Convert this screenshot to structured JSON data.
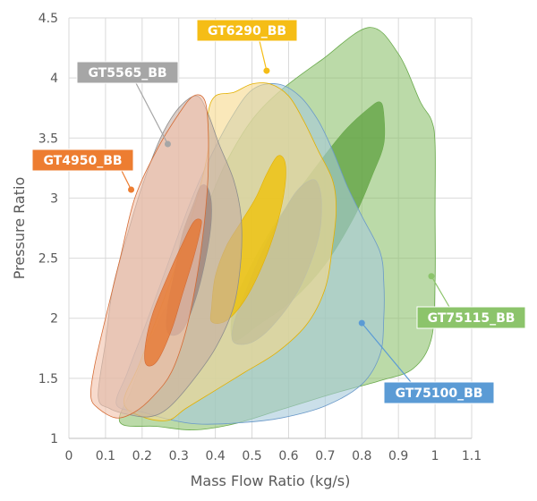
{
  "chart_data": {
    "type": "area",
    "xlabel": "Mass Flow Ratio (kg/s)",
    "ylabel": "Pressure Ratio",
    "xlim": [
      0,
      1.1
    ],
    "ylim": [
      1,
      4.5
    ],
    "xticks": [
      "0",
      "0.1",
      "0.2",
      "0.3",
      "0.4",
      "0.5",
      "0.6",
      "0.7",
      "0.8",
      "0.9",
      "1",
      "1.1"
    ],
    "yticks": [
      "1",
      "1.5",
      "2",
      "2.5",
      "3",
      "3.5",
      "4",
      "4.5"
    ],
    "grid": true,
    "series": [
      {
        "name": "GT75115_BB",
        "fill": "#8dc26e",
        "island": "#5ea03f",
        "stroke": "#6aaa4c",
        "callout": "#8cc46b",
        "label_at": [
          0.99,
          2.35
        ],
        "outline": [
          [
            0.14,
            1.13
          ],
          [
            0.24,
            1.1
          ],
          [
            0.34,
            1.07
          ],
          [
            0.45,
            1.12
          ],
          [
            0.58,
            1.24
          ],
          [
            0.73,
            1.38
          ],
          [
            0.85,
            1.48
          ],
          [
            0.94,
            1.58
          ],
          [
            0.99,
            1.83
          ],
          [
            1.0,
            2.3
          ],
          [
            1.0,
            2.9
          ],
          [
            1.0,
            3.45
          ],
          [
            0.99,
            3.65
          ],
          [
            0.96,
            3.8
          ],
          [
            0.9,
            4.2
          ],
          [
            0.82,
            4.42
          ],
          [
            0.69,
            4.15
          ],
          [
            0.58,
            3.9
          ],
          [
            0.5,
            3.65
          ],
          [
            0.43,
            3.3
          ],
          [
            0.38,
            2.95
          ],
          [
            0.33,
            2.6
          ],
          [
            0.28,
            2.2
          ],
          [
            0.22,
            1.8
          ],
          [
            0.17,
            1.4
          ],
          [
            0.14,
            1.13
          ]
        ],
        "island_outline": [
          [
            0.45,
            1.82
          ],
          [
            0.52,
            1.95
          ],
          [
            0.61,
            2.15
          ],
          [
            0.7,
            2.45
          ],
          [
            0.78,
            2.85
          ],
          [
            0.83,
            3.2
          ],
          [
            0.86,
            3.45
          ],
          [
            0.86,
            3.7
          ],
          [
            0.85,
            3.8
          ],
          [
            0.82,
            3.75
          ],
          [
            0.75,
            3.55
          ],
          [
            0.66,
            3.2
          ],
          [
            0.57,
            2.82
          ],
          [
            0.5,
            2.45
          ],
          [
            0.45,
            2.1
          ],
          [
            0.45,
            1.82
          ]
        ]
      },
      {
        "name": "GT75100_BB",
        "fill": "#a7c9da",
        "island": "#7598a8",
        "stroke": "#6a99c9",
        "callout": "#5b9bd5",
        "label_at": [
          0.8,
          1.96
        ],
        "outline": [
          [
            0.13,
            1.28
          ],
          [
            0.2,
            1.22
          ],
          [
            0.27,
            1.16
          ],
          [
            0.35,
            1.12
          ],
          [
            0.47,
            1.13
          ],
          [
            0.58,
            1.17
          ],
          [
            0.7,
            1.27
          ],
          [
            0.8,
            1.45
          ],
          [
            0.85,
            1.7
          ],
          [
            0.86,
            2.0
          ],
          [
            0.86,
            2.3
          ],
          [
            0.85,
            2.55
          ],
          [
            0.8,
            2.85
          ],
          [
            0.76,
            3.1
          ],
          [
            0.72,
            3.4
          ],
          [
            0.68,
            3.65
          ],
          [
            0.63,
            3.85
          ],
          [
            0.57,
            3.95
          ],
          [
            0.5,
            3.9
          ],
          [
            0.44,
            3.65
          ],
          [
            0.38,
            3.3
          ],
          [
            0.33,
            2.95
          ],
          [
            0.27,
            2.45
          ],
          [
            0.21,
            1.95
          ],
          [
            0.16,
            1.55
          ],
          [
            0.13,
            1.28
          ]
        ],
        "island_outline": [
          [
            0.45,
            1.8
          ],
          [
            0.5,
            1.8
          ],
          [
            0.56,
            1.95
          ],
          [
            0.63,
            2.25
          ],
          [
            0.68,
            2.65
          ],
          [
            0.69,
            2.95
          ],
          [
            0.68,
            3.12
          ],
          [
            0.66,
            3.15
          ],
          [
            0.62,
            3.05
          ],
          [
            0.57,
            2.8
          ],
          [
            0.52,
            2.5
          ],
          [
            0.48,
            2.2
          ],
          [
            0.45,
            1.95
          ],
          [
            0.45,
            1.8
          ]
        ]
      },
      {
        "name": "GT6290_BB",
        "fill": "#f6d98c",
        "island": "#f0c000",
        "stroke": "#e3b000",
        "callout": "#f5bd16",
        "label_at": [
          0.54,
          4.06
        ],
        "outline": [
          [
            0.15,
            1.3
          ],
          [
            0.2,
            1.18
          ],
          [
            0.27,
            1.15
          ],
          [
            0.32,
            1.25
          ],
          [
            0.4,
            1.4
          ],
          [
            0.48,
            1.55
          ],
          [
            0.57,
            1.72
          ],
          [
            0.65,
            1.95
          ],
          [
            0.7,
            2.25
          ],
          [
            0.72,
            2.6
          ],
          [
            0.73,
            2.9
          ],
          [
            0.72,
            3.15
          ],
          [
            0.68,
            3.4
          ],
          [
            0.64,
            3.65
          ],
          [
            0.6,
            3.85
          ],
          [
            0.55,
            3.95
          ],
          [
            0.5,
            3.95
          ],
          [
            0.45,
            3.88
          ],
          [
            0.4,
            3.85
          ],
          [
            0.38,
            3.7
          ],
          [
            0.38,
            3.4
          ],
          [
            0.35,
            3.0
          ],
          [
            0.3,
            2.5
          ],
          [
            0.24,
            2.0
          ],
          [
            0.19,
            1.6
          ],
          [
            0.15,
            1.3
          ]
        ],
        "island_outline": [
          [
            0.39,
            1.97
          ],
          [
            0.43,
            1.98
          ],
          [
            0.48,
            2.15
          ],
          [
            0.53,
            2.45
          ],
          [
            0.57,
            2.8
          ],
          [
            0.59,
            3.1
          ],
          [
            0.59,
            3.3
          ],
          [
            0.57,
            3.35
          ],
          [
            0.54,
            3.2
          ],
          [
            0.51,
            3.0
          ],
          [
            0.47,
            2.8
          ],
          [
            0.43,
            2.6
          ],
          [
            0.4,
            2.35
          ],
          [
            0.39,
            2.1
          ],
          [
            0.39,
            1.97
          ]
        ]
      },
      {
        "name": "GT5565_BB",
        "fill": "#c4ada3",
        "island": "#99807a",
        "stroke": "#8d8d8d",
        "callout": "#a6a6a6",
        "label_at": [
          0.27,
          3.45
        ],
        "outline": [
          [
            0.08,
            1.35
          ],
          [
            0.11,
            1.25
          ],
          [
            0.16,
            1.2
          ],
          [
            0.22,
            1.18
          ],
          [
            0.27,
            1.25
          ],
          [
            0.33,
            1.45
          ],
          [
            0.4,
            1.75
          ],
          [
            0.45,
            2.1
          ],
          [
            0.47,
            2.5
          ],
          [
            0.47,
            2.85
          ],
          [
            0.45,
            3.15
          ],
          [
            0.41,
            3.45
          ],
          [
            0.38,
            3.7
          ],
          [
            0.35,
            3.85
          ],
          [
            0.3,
            3.75
          ],
          [
            0.25,
            3.5
          ],
          [
            0.2,
            3.1
          ],
          [
            0.16,
            2.7
          ],
          [
            0.12,
            2.25
          ],
          [
            0.1,
            1.8
          ],
          [
            0.08,
            1.35
          ]
        ],
        "island_outline": [
          [
            0.27,
            1.88
          ],
          [
            0.31,
            1.9
          ],
          [
            0.35,
            2.2
          ],
          [
            0.38,
            2.6
          ],
          [
            0.39,
            2.9
          ],
          [
            0.38,
            3.08
          ],
          [
            0.36,
            3.1
          ],
          [
            0.34,
            2.95
          ],
          [
            0.31,
            2.7
          ],
          [
            0.29,
            2.4
          ],
          [
            0.27,
            2.1
          ],
          [
            0.27,
            1.88
          ]
        ]
      },
      {
        "name": "GT4950_BB",
        "fill": "#f2c1aa",
        "island": "#e7732a",
        "stroke": "#d46b35",
        "callout": "#ed7d31",
        "label_at": [
          0.17,
          3.07
        ],
        "outline": [
          [
            0.06,
            1.35
          ],
          [
            0.08,
            1.25
          ],
          [
            0.13,
            1.17
          ],
          [
            0.18,
            1.22
          ],
          [
            0.23,
            1.35
          ],
          [
            0.28,
            1.55
          ],
          [
            0.32,
            1.9
          ],
          [
            0.35,
            2.35
          ],
          [
            0.37,
            2.8
          ],
          [
            0.38,
            3.2
          ],
          [
            0.38,
            3.6
          ],
          [
            0.37,
            3.82
          ],
          [
            0.34,
            3.85
          ],
          [
            0.3,
            3.7
          ],
          [
            0.24,
            3.4
          ],
          [
            0.18,
            3.0
          ],
          [
            0.14,
            2.5
          ],
          [
            0.1,
            2.0
          ],
          [
            0.07,
            1.6
          ],
          [
            0.06,
            1.35
          ]
        ],
        "island_outline": [
          [
            0.21,
            1.62
          ],
          [
            0.24,
            1.64
          ],
          [
            0.28,
            1.9
          ],
          [
            0.31,
            2.2
          ],
          [
            0.34,
            2.5
          ],
          [
            0.36,
            2.75
          ],
          [
            0.36,
            2.82
          ],
          [
            0.34,
            2.8
          ],
          [
            0.31,
            2.62
          ],
          [
            0.27,
            2.35
          ],
          [
            0.23,
            2.05
          ],
          [
            0.21,
            1.8
          ],
          [
            0.21,
            1.62
          ]
        ]
      }
    ]
  }
}
